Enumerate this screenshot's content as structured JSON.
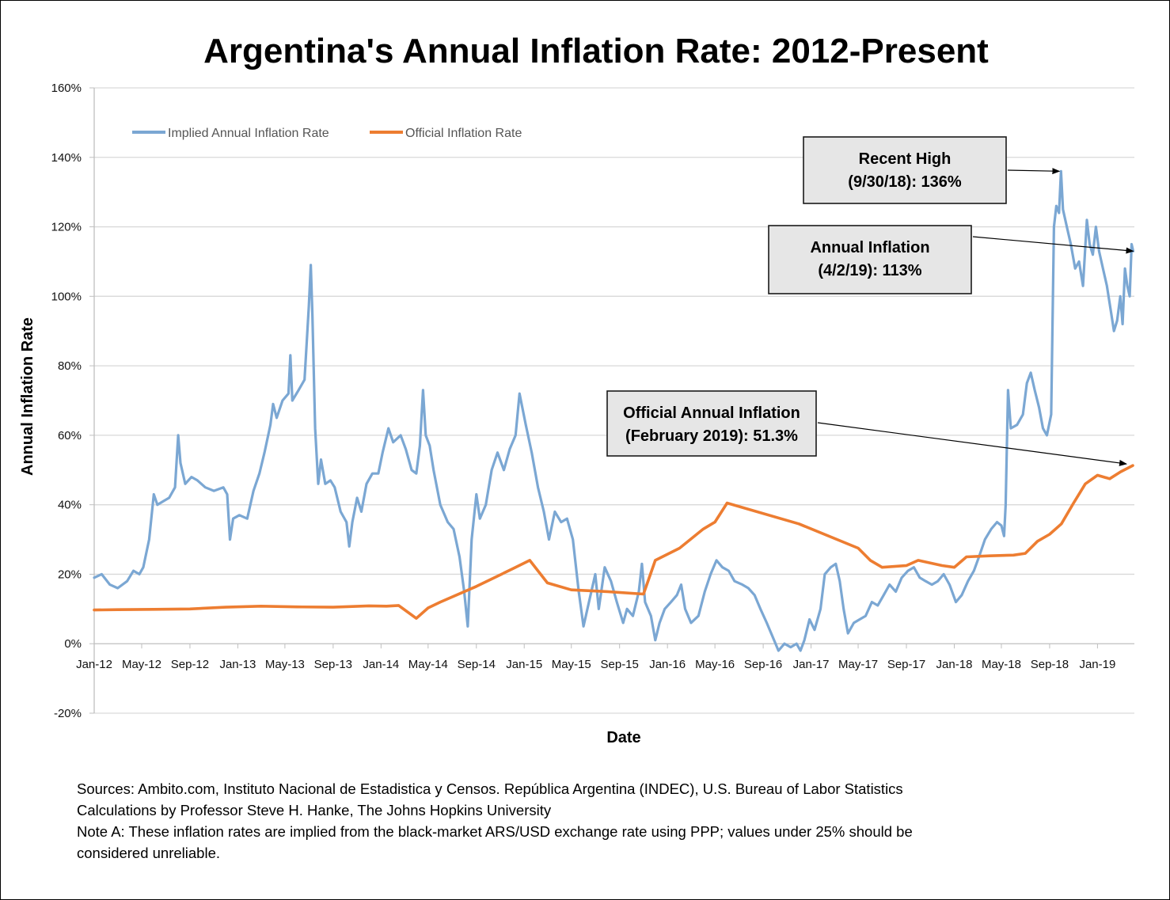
{
  "chart_data": {
    "type": "line",
    "title": "Argentina's Annual Inflation Rate: 2012-Present",
    "xlabel": "Date",
    "ylabel": "Annual Inflation Rate",
    "ylim": [
      -20,
      160
    ],
    "y_ticks": [
      -20,
      0,
      20,
      40,
      60,
      80,
      100,
      120,
      140,
      160
    ],
    "y_tick_labels": [
      "-20%",
      "0%",
      "20%",
      "40%",
      "60%",
      "80%",
      "100%",
      "120%",
      "140%",
      "160%"
    ],
    "x_range": [
      "2012-01-01",
      "2019-04-05"
    ],
    "x_ticks": [
      "2012-01-01",
      "2012-05-01",
      "2012-09-01",
      "2013-01-01",
      "2013-05-01",
      "2013-09-01",
      "2014-01-01",
      "2014-05-01",
      "2014-09-01",
      "2015-01-01",
      "2015-05-01",
      "2015-09-01",
      "2016-01-01",
      "2016-05-01",
      "2016-09-01",
      "2017-01-01",
      "2017-05-01",
      "2017-09-01",
      "2018-01-01",
      "2018-05-01",
      "2018-09-01",
      "2019-01-01"
    ],
    "x_tick_labels": [
      "Jan-12",
      "May-12",
      "Sep-12",
      "Jan-13",
      "May-13",
      "Sep-13",
      "Jan-14",
      "May-14",
      "Sep-14",
      "Jan-15",
      "May-15",
      "Sep-15",
      "Jan-16",
      "May-16",
      "Sep-16",
      "Jan-17",
      "May-17",
      "Sep-17",
      "Jan-18",
      "May-18",
      "Sep-18",
      "Jan-19"
    ],
    "grid": "horizontal",
    "legend": "top-left",
    "series": [
      {
        "name": "Implied Annual Inflation Rate",
        "color": "#7ba7d3",
        "points": [
          [
            "2012-01-01",
            19
          ],
          [
            "2012-01-20",
            20
          ],
          [
            "2012-02-10",
            17
          ],
          [
            "2012-03-01",
            16
          ],
          [
            "2012-03-25",
            18
          ],
          [
            "2012-04-10",
            21
          ],
          [
            "2012-04-25",
            20
          ],
          [
            "2012-05-05",
            22
          ],
          [
            "2012-05-20",
            30
          ],
          [
            "2012-06-01",
            43
          ],
          [
            "2012-06-10",
            40
          ],
          [
            "2012-06-25",
            41
          ],
          [
            "2012-07-10",
            42
          ],
          [
            "2012-07-25",
            45
          ],
          [
            "2012-08-02",
            60
          ],
          [
            "2012-08-08",
            52
          ],
          [
            "2012-08-20",
            46
          ],
          [
            "2012-09-05",
            48
          ],
          [
            "2012-09-20",
            47
          ],
          [
            "2012-10-10",
            45
          ],
          [
            "2012-11-01",
            44
          ],
          [
            "2012-11-25",
            45
          ],
          [
            "2012-12-05",
            43
          ],
          [
            "2012-12-12",
            30
          ],
          [
            "2012-12-20",
            36
          ],
          [
            "2013-01-05",
            37
          ],
          [
            "2013-01-25",
            36
          ],
          [
            "2013-02-10",
            44
          ],
          [
            "2013-02-25",
            49
          ],
          [
            "2013-03-10",
            55
          ],
          [
            "2013-03-25",
            63
          ],
          [
            "2013-04-01",
            69
          ],
          [
            "2013-04-10",
            65
          ],
          [
            "2013-04-25",
            70
          ],
          [
            "2013-05-10",
            72
          ],
          [
            "2013-05-15",
            83
          ],
          [
            "2013-05-20",
            70
          ],
          [
            "2013-06-05",
            73
          ],
          [
            "2013-06-20",
            76
          ],
          [
            "2013-07-01",
            97
          ],
          [
            "2013-07-06",
            109
          ],
          [
            "2013-07-10",
            95
          ],
          [
            "2013-07-17",
            62
          ],
          [
            "2013-07-25",
            46
          ],
          [
            "2013-08-01",
            53
          ],
          [
            "2013-08-12",
            46
          ],
          [
            "2013-08-25",
            47
          ],
          [
            "2013-09-05",
            45
          ],
          [
            "2013-09-20",
            38
          ],
          [
            "2013-10-05",
            35
          ],
          [
            "2013-10-12",
            28
          ],
          [
            "2013-10-20",
            35
          ],
          [
            "2013-11-01",
            42
          ],
          [
            "2013-11-12",
            38
          ],
          [
            "2013-11-25",
            46
          ],
          [
            "2013-12-10",
            49
          ],
          [
            "2013-12-25",
            49
          ],
          [
            "2014-01-05",
            55
          ],
          [
            "2014-01-20",
            62
          ],
          [
            "2014-02-01",
            58
          ],
          [
            "2014-02-20",
            60
          ],
          [
            "2014-03-05",
            56
          ],
          [
            "2014-03-20",
            50
          ],
          [
            "2014-04-01",
            49
          ],
          [
            "2014-04-10",
            57
          ],
          [
            "2014-04-18",
            73
          ],
          [
            "2014-04-25",
            60
          ],
          [
            "2014-05-05",
            57
          ],
          [
            "2014-05-15",
            50
          ],
          [
            "2014-06-01",
            40
          ],
          [
            "2014-06-20",
            35
          ],
          [
            "2014-07-05",
            33
          ],
          [
            "2014-07-20",
            25
          ],
          [
            "2014-08-01",
            15
          ],
          [
            "2014-08-10",
            5
          ],
          [
            "2014-08-20",
            30
          ],
          [
            "2014-09-01",
            43
          ],
          [
            "2014-09-10",
            36
          ],
          [
            "2014-09-25",
            40
          ],
          [
            "2014-10-10",
            50
          ],
          [
            "2014-10-25",
            55
          ],
          [
            "2014-11-10",
            50
          ],
          [
            "2014-11-25",
            56
          ],
          [
            "2014-12-10",
            60
          ],
          [
            "2014-12-20",
            72
          ],
          [
            "2015-01-05",
            63
          ],
          [
            "2015-01-20",
            55
          ],
          [
            "2015-02-05",
            45
          ],
          [
            "2015-02-20",
            38
          ],
          [
            "2015-03-05",
            30
          ],
          [
            "2015-03-20",
            38
          ],
          [
            "2015-04-05",
            35
          ],
          [
            "2015-04-20",
            36
          ],
          [
            "2015-05-05",
            30
          ],
          [
            "2015-05-20",
            15
          ],
          [
            "2015-06-01",
            5
          ],
          [
            "2015-06-15",
            12
          ],
          [
            "2015-07-01",
            20
          ],
          [
            "2015-07-10",
            10
          ],
          [
            "2015-07-25",
            22
          ],
          [
            "2015-08-10",
            18
          ],
          [
            "2015-08-25",
            12
          ],
          [
            "2015-09-10",
            6
          ],
          [
            "2015-09-20",
            10
          ],
          [
            "2015-10-05",
            8
          ],
          [
            "2015-10-20",
            15
          ],
          [
            "2015-10-28",
            23
          ],
          [
            "2015-11-05",
            12
          ],
          [
            "2015-11-20",
            8
          ],
          [
            "2015-12-01",
            1
          ],
          [
            "2015-12-12",
            6
          ],
          [
            "2015-12-25",
            10
          ],
          [
            "2016-01-10",
            12
          ],
          [
            "2016-01-25",
            14
          ],
          [
            "2016-02-05",
            17
          ],
          [
            "2016-02-15",
            10
          ],
          [
            "2016-03-01",
            6
          ],
          [
            "2016-03-20",
            8
          ],
          [
            "2016-04-05",
            15
          ],
          [
            "2016-04-20",
            20
          ],
          [
            "2016-05-05",
            24
          ],
          [
            "2016-05-20",
            22
          ],
          [
            "2016-06-05",
            21
          ],
          [
            "2016-06-20",
            18
          ],
          [
            "2016-07-10",
            17
          ],
          [
            "2016-07-25",
            16
          ],
          [
            "2016-08-10",
            14
          ],
          [
            "2016-08-25",
            10
          ],
          [
            "2016-09-10",
            6
          ],
          [
            "2016-09-25",
            2
          ],
          [
            "2016-10-10",
            -2
          ],
          [
            "2016-10-25",
            0
          ],
          [
            "2016-11-10",
            -1
          ],
          [
            "2016-11-25",
            0
          ],
          [
            "2016-12-05",
            -2
          ],
          [
            "2016-12-15",
            1
          ],
          [
            "2016-12-28",
            7
          ],
          [
            "2017-01-10",
            4
          ],
          [
            "2017-01-25",
            10
          ],
          [
            "2017-02-05",
            20
          ],
          [
            "2017-02-20",
            22
          ],
          [
            "2017-03-05",
            23
          ],
          [
            "2017-03-15",
            18
          ],
          [
            "2017-03-25",
            10
          ],
          [
            "2017-04-05",
            3
          ],
          [
            "2017-04-20",
            6
          ],
          [
            "2017-05-05",
            7
          ],
          [
            "2017-05-20",
            8
          ],
          [
            "2017-06-05",
            12
          ],
          [
            "2017-06-20",
            11
          ],
          [
            "2017-07-05",
            14
          ],
          [
            "2017-07-20",
            17
          ],
          [
            "2017-08-05",
            15
          ],
          [
            "2017-08-20",
            19
          ],
          [
            "2017-09-05",
            21
          ],
          [
            "2017-09-20",
            22
          ],
          [
            "2017-10-05",
            19
          ],
          [
            "2017-10-20",
            18
          ],
          [
            "2017-11-05",
            17
          ],
          [
            "2017-11-20",
            18
          ],
          [
            "2017-12-05",
            20
          ],
          [
            "2017-12-20",
            17
          ],
          [
            "2018-01-05",
            12
          ],
          [
            "2018-01-20",
            14
          ],
          [
            "2018-02-05",
            18
          ],
          [
            "2018-02-20",
            21
          ],
          [
            "2018-03-05",
            25
          ],
          [
            "2018-03-20",
            30
          ],
          [
            "2018-04-05",
            33
          ],
          [
            "2018-04-20",
            35
          ],
          [
            "2018-05-01",
            34
          ],
          [
            "2018-05-08",
            31
          ],
          [
            "2018-05-12",
            40
          ],
          [
            "2018-05-18",
            73
          ],
          [
            "2018-05-25",
            62
          ],
          [
            "2018-06-10",
            63
          ],
          [
            "2018-06-25",
            66
          ],
          [
            "2018-07-05",
            75
          ],
          [
            "2018-07-15",
            78
          ],
          [
            "2018-07-25",
            73
          ],
          [
            "2018-08-05",
            68
          ],
          [
            "2018-08-15",
            62
          ],
          [
            "2018-08-25",
            60
          ],
          [
            "2018-09-05",
            66
          ],
          [
            "2018-09-12",
            120
          ],
          [
            "2018-09-18",
            126
          ],
          [
            "2018-09-25",
            124
          ],
          [
            "2018-09-30",
            136
          ],
          [
            "2018-10-05",
            125
          ],
          [
            "2018-10-15",
            120
          ],
          [
            "2018-10-25",
            115
          ],
          [
            "2018-11-05",
            108
          ],
          [
            "2018-11-15",
            110
          ],
          [
            "2018-11-25",
            103
          ],
          [
            "2018-12-05",
            122
          ],
          [
            "2018-12-12",
            115
          ],
          [
            "2018-12-20",
            112
          ],
          [
            "2018-12-28",
            120
          ],
          [
            "2019-01-05",
            113
          ],
          [
            "2019-01-15",
            108
          ],
          [
            "2019-01-25",
            103
          ],
          [
            "2019-02-05",
            95
          ],
          [
            "2019-02-12",
            90
          ],
          [
            "2019-02-20",
            93
          ],
          [
            "2019-02-28",
            100
          ],
          [
            "2019-03-06",
            92
          ],
          [
            "2019-03-12",
            108
          ],
          [
            "2019-03-18",
            103
          ],
          [
            "2019-03-24",
            100
          ],
          [
            "2019-03-29",
            115
          ],
          [
            "2019-04-02",
            113
          ]
        ]
      },
      {
        "name": "Official Inflation Rate",
        "color": "#ed7d31",
        "points": [
          [
            "2012-01-01",
            9.7
          ],
          [
            "2012-03-01",
            9.8
          ],
          [
            "2012-06-01",
            9.9
          ],
          [
            "2012-09-01",
            10.0
          ],
          [
            "2012-12-01",
            10.5
          ],
          [
            "2013-03-01",
            10.8
          ],
          [
            "2013-06-01",
            10.6
          ],
          [
            "2013-09-01",
            10.5
          ],
          [
            "2013-12-01",
            10.9
          ],
          [
            "2014-01-15",
            10.8
          ],
          [
            "2014-02-15",
            11.0
          ],
          [
            "2014-04-01",
            7.3
          ],
          [
            "2014-05-01",
            10.3
          ],
          [
            "2014-06-01",
            12.0
          ],
          [
            "2014-09-01",
            16.5
          ],
          [
            "2014-12-01",
            21.5
          ],
          [
            "2015-01-15",
            24.0
          ],
          [
            "2015-03-01",
            17.5
          ],
          [
            "2015-05-01",
            15.5
          ],
          [
            "2015-08-01",
            15.0
          ],
          [
            "2015-11-01",
            14.3
          ],
          [
            "2015-12-01",
            24.0
          ],
          [
            "2016-02-01",
            27.5
          ],
          [
            "2016-04-01",
            33.0
          ],
          [
            "2016-05-01",
            35.0
          ],
          [
            "2016-06-01",
            40.5
          ],
          [
            "2016-12-01",
            34.5
          ],
          [
            "2017-05-01",
            27.5
          ],
          [
            "2017-06-01",
            24.0
          ],
          [
            "2017-07-01",
            22.0
          ],
          [
            "2017-09-01",
            22.5
          ],
          [
            "2017-10-01",
            24.0
          ],
          [
            "2017-12-01",
            22.5
          ],
          [
            "2018-01-01",
            22.0
          ],
          [
            "2018-02-01",
            25.0
          ],
          [
            "2018-04-01",
            25.3
          ],
          [
            "2018-06-01",
            25.5
          ],
          [
            "2018-07-01",
            26.0
          ],
          [
            "2018-08-01",
            29.5
          ],
          [
            "2018-09-01",
            31.5
          ],
          [
            "2018-10-01",
            34.5
          ],
          [
            "2018-11-01",
            40.5
          ],
          [
            "2018-12-01",
            46.0
          ],
          [
            "2019-01-01",
            48.5
          ],
          [
            "2019-02-01",
            47.5
          ],
          [
            "2019-03-01",
            49.5
          ],
          [
            "2019-04-01",
            51.3
          ]
        ]
      }
    ],
    "annotations": [
      {
        "id": "recent-high",
        "lines": [
          "Recent High",
          "(9/30/18): 136%"
        ],
        "target": [
          "2018-09-30",
          136
        ]
      },
      {
        "id": "annual-inflation",
        "lines": [
          "Annual  Inflation",
          "(4/2/19): 113%"
        ],
        "target": [
          "2019-04-02",
          113
        ]
      },
      {
        "id": "official-annual-inflation",
        "lines": [
          "Official Annual Inflation",
          "(February 2019): 51.3%"
        ],
        "target": [
          "2019-04-01",
          51.3
        ]
      }
    ]
  },
  "footnotes": {
    "line1": "Sources: Ambito.com, Instituto Nacional de Estadistica y Censos. República Argentina (INDEC), U.S. Bureau of Labor Statistics",
    "line2": "Calculations by Professor Steve H. Hanke, The Johns Hopkins University",
    "line3": "Note A: These inflation rates are implied from the black-market ARS/USD exchange rate using PPP; values under 25% should be",
    "line4": "considered unreliable."
  }
}
